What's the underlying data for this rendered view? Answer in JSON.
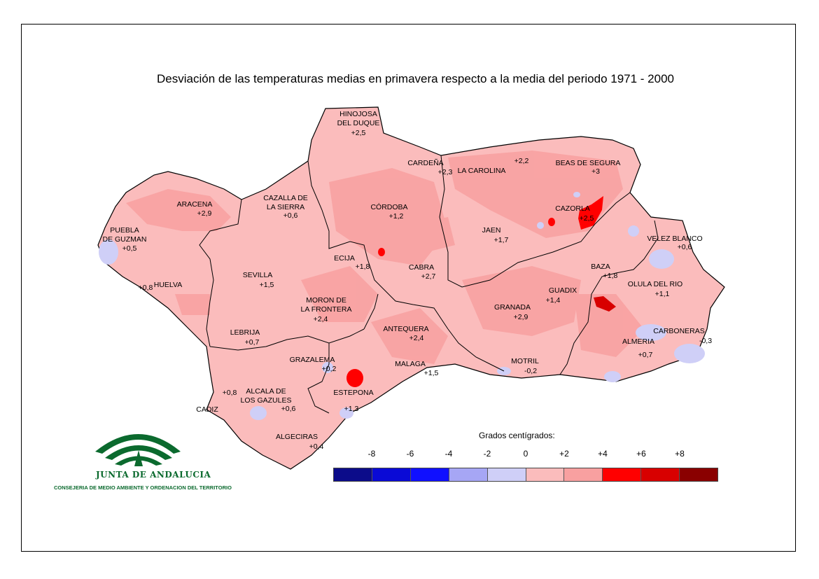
{
  "title": "Desviación de las temperaturas medias en primavera respecto a la media del periodo 1971 - 2000",
  "legend": {
    "title": "Grados centígrados:",
    "ticks": [
      "-8",
      "-6",
      "-4",
      "-2",
      "0",
      "+2",
      "+4",
      "+6",
      "+8"
    ],
    "colors": [
      "#0c0c8a",
      "#0a0ad6",
      "#1010ff",
      "#a6a6f5",
      "#cfcff7",
      "#fbbcbc",
      "#f8a0a0",
      "#ff0000",
      "#d80000",
      "#8a0000"
    ]
  },
  "stations": [
    {
      "id": "hinojosa",
      "name": [
        "HINOJOSA",
        "DEL DUQUE"
      ],
      "value": "+2,5"
    },
    {
      "id": "cardena",
      "name": [
        "CARDEÑA"
      ],
      "value": "+2,3"
    },
    {
      "id": "la-carolina",
      "name": [
        "LA CAROLINA"
      ],
      "value": "+2,2"
    },
    {
      "id": "beas",
      "name": [
        "BEAS DE SEGURA"
      ],
      "value": "+3"
    },
    {
      "id": "aracena",
      "name": [
        "ARACENA"
      ],
      "value": "+2,9"
    },
    {
      "id": "cazalla",
      "name": [
        "CAZALLA DE",
        "LA SIERRA"
      ],
      "value": "+0,6"
    },
    {
      "id": "cordoba",
      "name": [
        "CÓRDOBA"
      ],
      "value": "+1,2"
    },
    {
      "id": "cazorla",
      "name": [
        "CAZORLA"
      ],
      "value": "+2,5"
    },
    {
      "id": "puebla",
      "name": [
        "PUEBLA",
        "DE GUZMAN"
      ],
      "value": "+0,5"
    },
    {
      "id": "jaen",
      "name": [
        "JAEN"
      ],
      "value": "+1,7"
    },
    {
      "id": "velez-blanco",
      "name": [
        "VELEZ BLANCO"
      ],
      "value": "+0,6"
    },
    {
      "id": "ecija",
      "name": [
        "ECIJA"
      ],
      "value": "+1,8"
    },
    {
      "id": "cabra",
      "name": [
        "CABRA"
      ],
      "value": "+2,7"
    },
    {
      "id": "sevilla",
      "name": [
        "SEVILLA"
      ],
      "value": "+1,5"
    },
    {
      "id": "huelva",
      "name": [
        "HUELVA"
      ],
      "value": "+0,8"
    },
    {
      "id": "baza",
      "name": [
        "BAZA"
      ],
      "value": "+1,8"
    },
    {
      "id": "olula",
      "name": [
        "OLULA DEL RIO"
      ],
      "value": "+1,1"
    },
    {
      "id": "guadix",
      "name": [
        "GUADIX"
      ],
      "value": "+1,4"
    },
    {
      "id": "moron",
      "name": [
        "MORON DE",
        "LA FRONTERA"
      ],
      "value": "+2,4"
    },
    {
      "id": "granada",
      "name": [
        "GRANADA"
      ],
      "value": "+2,9"
    },
    {
      "id": "antequera",
      "name": [
        "ANTEQUERA"
      ],
      "value": "+2,4"
    },
    {
      "id": "lebrija",
      "name": [
        "LEBRIJA"
      ],
      "value": "+0,7"
    },
    {
      "id": "carboneras",
      "name": [
        "CARBONERAS"
      ],
      "value": "-0,3"
    },
    {
      "id": "almeria",
      "name": [
        "ALMERIA"
      ],
      "value": "+0,7"
    },
    {
      "id": "grazalema",
      "name": [
        "GRAZALEMA"
      ],
      "value": "+0,2"
    },
    {
      "id": "motril",
      "name": [
        "MOTRIL"
      ],
      "value": "-0,2"
    },
    {
      "id": "malaga",
      "name": [
        "MALAGA"
      ],
      "value": "+1,5"
    },
    {
      "id": "alcala",
      "name": [
        "ALCALA DE",
        "LOS GAZULES"
      ],
      "value": "+0,6"
    },
    {
      "id": "estepona",
      "name": [
        "ESTEPONA"
      ],
      "value": "+1,3"
    },
    {
      "id": "cadiz",
      "name": [
        "CADIZ"
      ],
      "value": "+0,8"
    },
    {
      "id": "algeciras",
      "name": [
        "ALGECIRAS"
      ],
      "value": "+0,4"
    }
  ],
  "logo": {
    "name": "JUNTA DE ANDALUCIA",
    "subtitle": "CONSEJERIA DE MEDIO AMBIENTE Y ORDENACION DEL TERRITORIO"
  }
}
